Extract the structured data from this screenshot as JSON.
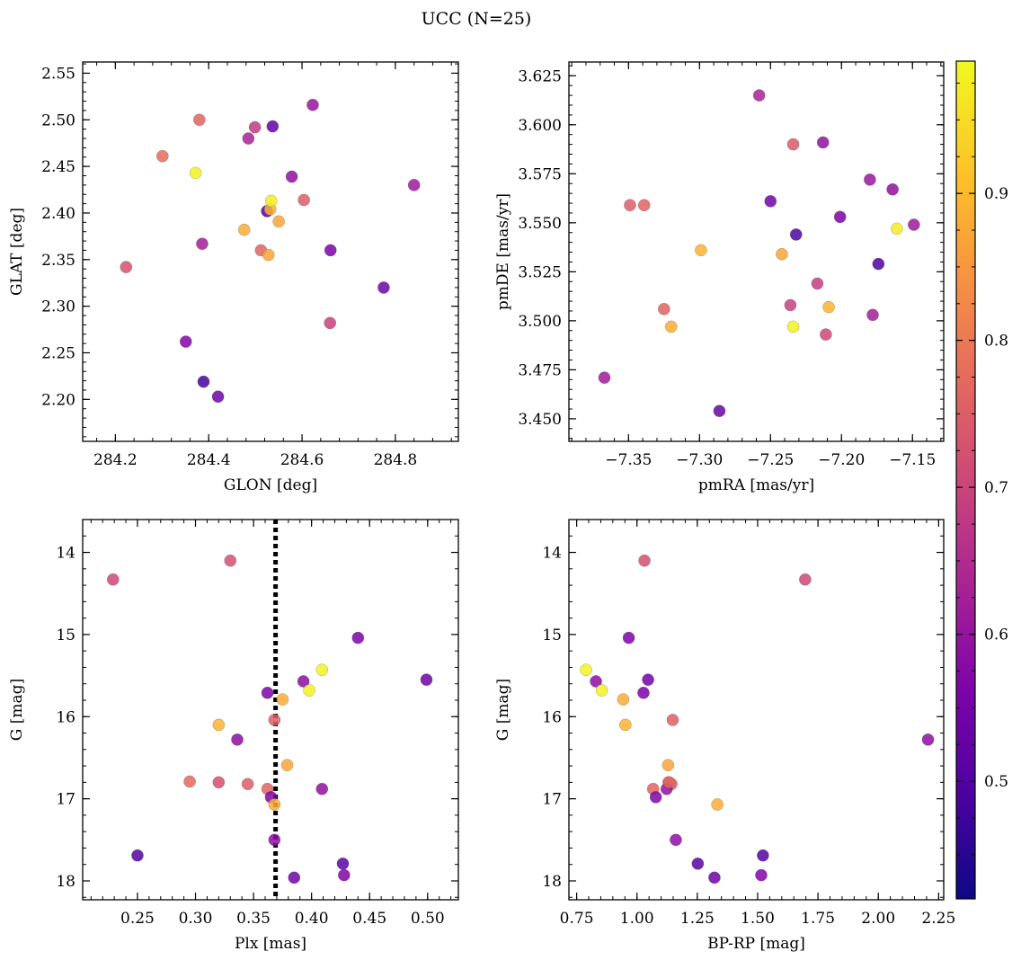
{
  "figure": {
    "title": "UCC (N=25)",
    "colorbar": {
      "colormap": "plasma",
      "range": [
        0.42,
        0.99
      ],
      "ticks": [
        "0.5",
        "0.6",
        "0.7",
        "0.8",
        "0.9"
      ],
      "tick_values": [
        0.5,
        0.6,
        0.7,
        0.8,
        0.9
      ]
    }
  },
  "chart_data": [
    {
      "type": "scatter",
      "panel": "top-left",
      "xlabel": "GLON [deg]",
      "ylabel": "GLAT [deg]",
      "xlim": [
        284.13,
        284.935
      ],
      "ylim": [
        2.155,
        2.562
      ],
      "y_inverted": false,
      "xticks": [
        284.2,
        284.4,
        284.6,
        284.8
      ],
      "xtick_labels": [
        "284.2",
        "284.4",
        "284.6",
        "284.8"
      ],
      "yticks": [
        2.2,
        2.25,
        2.3,
        2.35,
        2.4,
        2.45,
        2.5,
        2.55
      ],
      "ytick_labels": [
        "2.20",
        "2.25",
        "2.30",
        "2.35",
        "2.40",
        "2.45",
        "2.50",
        "2.55"
      ],
      "points": [
        {
          "x": 284.223,
          "y": 2.342,
          "c": 0.7
        },
        {
          "x": 284.301,
          "y": 2.461,
          "c": 0.76
        },
        {
          "x": 284.351,
          "y": 2.262,
          "c": 0.53
        },
        {
          "x": 284.372,
          "y": 2.443,
          "c": 0.98
        },
        {
          "x": 284.38,
          "y": 2.5,
          "c": 0.74
        },
        {
          "x": 284.386,
          "y": 2.367,
          "c": 0.59
        },
        {
          "x": 284.389,
          "y": 2.219,
          "c": 0.44
        },
        {
          "x": 284.42,
          "y": 2.203,
          "c": 0.5
        },
        {
          "x": 284.476,
          "y": 2.382,
          "c": 0.87
        },
        {
          "x": 284.485,
          "y": 2.48,
          "c": 0.6
        },
        {
          "x": 284.499,
          "y": 2.492,
          "c": 0.65
        },
        {
          "x": 284.512,
          "y": 2.36,
          "c": 0.74
        },
        {
          "x": 284.525,
          "y": 2.402,
          "c": 0.45
        },
        {
          "x": 284.528,
          "y": 2.355,
          "c": 0.86
        },
        {
          "x": 284.532,
          "y": 2.404,
          "c": 0.88
        },
        {
          "x": 284.534,
          "y": 2.413,
          "c": 0.97
        },
        {
          "x": 284.537,
          "y": 2.493,
          "c": 0.48
        },
        {
          "x": 284.55,
          "y": 2.391,
          "c": 0.86
        },
        {
          "x": 284.578,
          "y": 2.439,
          "c": 0.56
        },
        {
          "x": 284.604,
          "y": 2.414,
          "c": 0.73
        },
        {
          "x": 284.623,
          "y": 2.516,
          "c": 0.57
        },
        {
          "x": 284.66,
          "y": 2.282,
          "c": 0.67
        },
        {
          "x": 284.661,
          "y": 2.36,
          "c": 0.52
        },
        {
          "x": 284.775,
          "y": 2.32,
          "c": 0.5
        },
        {
          "x": 284.84,
          "y": 2.43,
          "c": 0.58
        }
      ]
    },
    {
      "type": "scatter",
      "panel": "top-right",
      "xlabel": "pmRA [mas/yr]",
      "ylabel": "pmDE [mas/yr]",
      "xlim": [
        -7.392,
        -7.128
      ],
      "ylim": [
        3.4385,
        3.632
      ],
      "y_inverted": false,
      "xticks": [
        -7.35,
        -7.3,
        -7.25,
        -7.2,
        -7.15
      ],
      "xtick_labels": [
        "−7.35",
        "−7.30",
        "−7.25",
        "−7.20",
        "−7.15"
      ],
      "yticks": [
        3.45,
        3.475,
        3.5,
        3.525,
        3.55,
        3.575,
        3.6,
        3.625
      ],
      "ytick_labels": [
        "3.450",
        "3.475",
        "3.500",
        "3.525",
        "3.550",
        "3.575",
        "3.600",
        "3.625"
      ],
      "points": [
        {
          "x": -7.367,
          "y": 3.471,
          "c": 0.58
        },
        {
          "x": -7.349,
          "y": 3.559,
          "c": 0.73
        },
        {
          "x": -7.339,
          "y": 3.559,
          "c": 0.74
        },
        {
          "x": -7.325,
          "y": 3.506,
          "c": 0.74
        },
        {
          "x": -7.32,
          "y": 3.497,
          "c": 0.87
        },
        {
          "x": -7.299,
          "y": 3.536,
          "c": 0.88
        },
        {
          "x": -7.286,
          "y": 3.454,
          "c": 0.49
        },
        {
          "x": -7.258,
          "y": 3.615,
          "c": 0.6
        },
        {
          "x": -7.25,
          "y": 3.561,
          "c": 0.5
        },
        {
          "x": -7.242,
          "y": 3.534,
          "c": 0.86
        },
        {
          "x": -7.236,
          "y": 3.508,
          "c": 0.67
        },
        {
          "x": -7.234,
          "y": 3.59,
          "c": 0.72
        },
        {
          "x": -7.234,
          "y": 3.497,
          "c": 0.98
        },
        {
          "x": -7.232,
          "y": 3.544,
          "c": 0.45
        },
        {
          "x": -7.217,
          "y": 3.519,
          "c": 0.66
        },
        {
          "x": -7.213,
          "y": 3.591,
          "c": 0.56
        },
        {
          "x": -7.211,
          "y": 3.493,
          "c": 0.68
        },
        {
          "x": -7.209,
          "y": 3.507,
          "c": 0.88
        },
        {
          "x": -7.201,
          "y": 3.553,
          "c": 0.52
        },
        {
          "x": -7.18,
          "y": 3.572,
          "c": 0.57
        },
        {
          "x": -7.178,
          "y": 3.503,
          "c": 0.59
        },
        {
          "x": -7.174,
          "y": 3.529,
          "c": 0.45
        },
        {
          "x": -7.164,
          "y": 3.567,
          "c": 0.56
        },
        {
          "x": -7.161,
          "y": 3.547,
          "c": 0.97
        },
        {
          "x": -7.149,
          "y": 3.549,
          "c": 0.58
        }
      ]
    },
    {
      "type": "scatter",
      "panel": "bottom-left",
      "xlabel": "Plx [mas]",
      "ylabel": "G [mag]",
      "xlim": [
        0.2028,
        0.5265
      ],
      "ylim": [
        13.6,
        18.23
      ],
      "y_inverted": true,
      "xticks": [
        0.25,
        0.3,
        0.35,
        0.4,
        0.45,
        0.5
      ],
      "xtick_labels": [
        "0.25",
        "0.30",
        "0.35",
        "0.40",
        "0.45",
        "0.50"
      ],
      "yticks": [
        14,
        15,
        16,
        17,
        18
      ],
      "ytick_labels": [
        "14",
        "15",
        "16",
        "17",
        "18"
      ],
      "vline": {
        "x": 0.369,
        "style": "dotted"
      },
      "points": [
        {
          "x": 0.229,
          "y": 14.33,
          "c": 0.68
        },
        {
          "x": 0.33,
          "y": 14.1,
          "c": 0.7
        },
        {
          "x": 0.44,
          "y": 15.04,
          "c": 0.52
        },
        {
          "x": 0.499,
          "y": 15.55,
          "c": 0.5
        },
        {
          "x": 0.409,
          "y": 15.43,
          "c": 0.98
        },
        {
          "x": 0.393,
          "y": 15.57,
          "c": 0.55
        },
        {
          "x": 0.362,
          "y": 15.71,
          "c": 0.52
        },
        {
          "x": 0.398,
          "y": 15.68,
          "c": 0.98
        },
        {
          "x": 0.375,
          "y": 15.79,
          "c": 0.87
        },
        {
          "x": 0.32,
          "y": 16.1,
          "c": 0.88
        },
        {
          "x": 0.368,
          "y": 16.04,
          "c": 0.73
        },
        {
          "x": 0.336,
          "y": 16.28,
          "c": 0.55
        },
        {
          "x": 0.379,
          "y": 16.59,
          "c": 0.86
        },
        {
          "x": 0.295,
          "y": 16.79,
          "c": 0.75
        },
        {
          "x": 0.32,
          "y": 16.8,
          "c": 0.7
        },
        {
          "x": 0.345,
          "y": 16.82,
          "c": 0.73
        },
        {
          "x": 0.362,
          "y": 16.88,
          "c": 0.74
        },
        {
          "x": 0.409,
          "y": 16.88,
          "c": 0.56
        },
        {
          "x": 0.365,
          "y": 16.98,
          "c": 0.53
        },
        {
          "x": 0.368,
          "y": 17.07,
          "c": 0.87
        },
        {
          "x": 0.368,
          "y": 17.5,
          "c": 0.55
        },
        {
          "x": 0.25,
          "y": 17.69,
          "c": 0.46
        },
        {
          "x": 0.427,
          "y": 17.79,
          "c": 0.47
        },
        {
          "x": 0.385,
          "y": 17.96,
          "c": 0.5
        },
        {
          "x": 0.428,
          "y": 17.93,
          "c": 0.53
        }
      ]
    },
    {
      "type": "scatter",
      "panel": "bottom-right",
      "xlabel": "BP-RP [mag]",
      "ylabel": "G [mag]",
      "xlim": [
        0.718,
        2.271
      ],
      "ylim": [
        13.6,
        18.23
      ],
      "y_inverted": true,
      "xticks": [
        0.75,
        1.0,
        1.25,
        1.5,
        1.75,
        2.0,
        2.25
      ],
      "xtick_labels": [
        "0.75",
        "1.00",
        "1.25",
        "1.50",
        "1.75",
        "2.00",
        "2.25"
      ],
      "yticks": [
        14,
        15,
        16,
        17,
        18
      ],
      "ytick_labels": [
        "14",
        "15",
        "16",
        "17",
        "18"
      ],
      "points": [
        {
          "x": 1.031,
          "y": 14.1,
          "c": 0.7
        },
        {
          "x": 1.697,
          "y": 14.33,
          "c": 0.68
        },
        {
          "x": 0.966,
          "y": 15.04,
          "c": 0.52
        },
        {
          "x": 0.789,
          "y": 15.43,
          "c": 0.98
        },
        {
          "x": 0.83,
          "y": 15.57,
          "c": 0.55
        },
        {
          "x": 1.046,
          "y": 15.55,
          "c": 0.5
        },
        {
          "x": 0.854,
          "y": 15.68,
          "c": 0.98
        },
        {
          "x": 1.027,
          "y": 15.71,
          "c": 0.52
        },
        {
          "x": 0.943,
          "y": 15.79,
          "c": 0.87
        },
        {
          "x": 1.148,
          "y": 16.04,
          "c": 0.73
        },
        {
          "x": 0.952,
          "y": 16.1,
          "c": 0.88
        },
        {
          "x": 2.206,
          "y": 16.28,
          "c": 0.55
        },
        {
          "x": 1.129,
          "y": 16.59,
          "c": 0.86
        },
        {
          "x": 1.131,
          "y": 16.8,
          "c": 0.7
        },
        {
          "x": 1.143,
          "y": 16.82,
          "c": 0.73
        },
        {
          "x": 1.067,
          "y": 16.88,
          "c": 0.74
        },
        {
          "x": 1.123,
          "y": 16.88,
          "c": 0.56
        },
        {
          "x": 1.078,
          "y": 16.98,
          "c": 0.53
        },
        {
          "x": 1.333,
          "y": 17.07,
          "c": 0.87
        },
        {
          "x": 1.161,
          "y": 17.5,
          "c": 0.55
        },
        {
          "x": 1.522,
          "y": 17.69,
          "c": 0.46
        },
        {
          "x": 1.252,
          "y": 17.79,
          "c": 0.47
        },
        {
          "x": 1.321,
          "y": 17.96,
          "c": 0.5
        },
        {
          "x": 1.515,
          "y": 17.93,
          "c": 0.53
        },
        {
          "x": 1.133,
          "y": 16.8,
          "c": 0.75
        }
      ]
    }
  ]
}
